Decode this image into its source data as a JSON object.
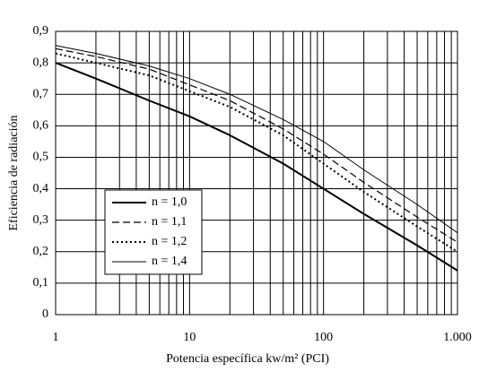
{
  "chart_data": {
    "type": "line",
    "x_label": "Potencia específica kw/m² (PCI)",
    "y_label": "Eficiencia de radiación",
    "x": [
      1,
      2,
      5,
      10,
      20,
      50,
      100,
      200,
      500,
      1000
    ],
    "xlim": [
      1,
      1000
    ],
    "log_x": true,
    "xticks": [
      1,
      10,
      100,
      {
        "value": 1000,
        "label": "1.000"
      }
    ],
    "ylim": [
      0,
      0.9
    ],
    "yticks": [
      0,
      {
        "value": 0.1,
        "label": "0,1"
      },
      {
        "value": 0.2,
        "label": "0,2"
      },
      {
        "value": 0.3,
        "label": "0,3"
      },
      {
        "value": 0.4,
        "label": "0,4"
      },
      {
        "value": 0.5,
        "label": "0,5"
      },
      {
        "value": 0.6,
        "label": "0,6"
      },
      {
        "value": 0.7,
        "label": "0,7"
      },
      {
        "value": 0.8,
        "label": "0,8"
      },
      {
        "value": 0.9,
        "label": "0,9"
      }
    ],
    "grid": "major-minor",
    "legend": "lower-left",
    "series": [
      {
        "name": "n = 1,0",
        "color": "#000000",
        "dash": "solid",
        "width": 2,
        "values": [
          0.8,
          0.75,
          0.68,
          0.63,
          0.57,
          0.48,
          0.4,
          0.32,
          0.22,
          0.14
        ]
      },
      {
        "name": "n = 1,1",
        "color": "#000000",
        "dash": "dashed",
        "width": 1.2,
        "values": [
          0.845,
          0.82,
          0.78,
          0.73,
          0.68,
          0.59,
          0.51,
          0.42,
          0.31,
          0.23
        ]
      },
      {
        "name": "n = 1,2",
        "color": "#000000",
        "dash": "dotted",
        "width": 2,
        "values": [
          0.83,
          0.8,
          0.76,
          0.71,
          0.66,
          0.57,
          0.48,
          0.39,
          0.28,
          0.2
        ]
      },
      {
        "name": "n = 1,4",
        "color": "#000000",
        "dash": "solid",
        "width": 1,
        "values": [
          0.855,
          0.83,
          0.79,
          0.75,
          0.7,
          0.62,
          0.55,
          0.46,
          0.35,
          0.26
        ]
      }
    ]
  }
}
